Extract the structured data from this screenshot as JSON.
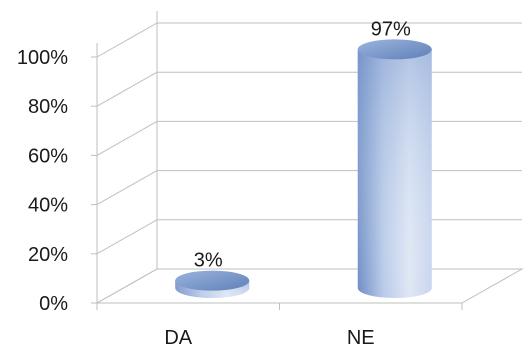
{
  "chart_data": {
    "type": "bar",
    "style": "3d-cylinder",
    "categories": [
      "DA",
      "NE"
    ],
    "values": [
      3,
      97
    ],
    "data_labels": [
      "3%",
      "97%"
    ],
    "ylim": [
      0,
      100
    ],
    "y_ticks": [
      "0%",
      "20%",
      "40%",
      "60%",
      "80%",
      "100%"
    ],
    "grid": true,
    "legend": "none",
    "colors": {
      "bar": "#8aa6d6",
      "bar_dark": "#5f7fb8",
      "bar_light": "#dfe7f5",
      "grid": "#bfbfbf"
    }
  }
}
